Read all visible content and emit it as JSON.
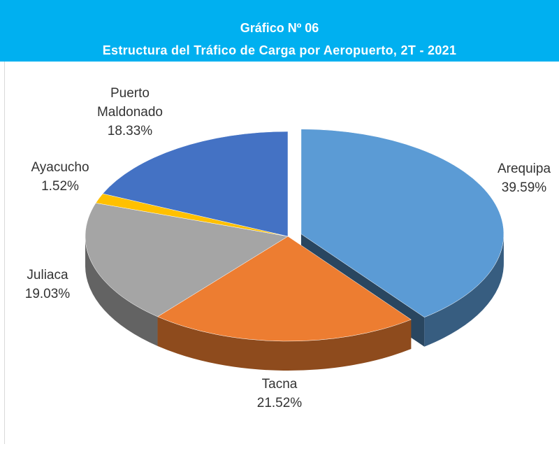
{
  "chart_data": {
    "type": "pie3d",
    "title": "Gráfico Nº 06",
    "subtitle": "Estructura del Tráfico de Carga por Aeropuerto, 2T - 2021",
    "categories": [
      "Arequipa",
      "Tacna",
      "Juliaca",
      "Ayacucho",
      "Puerto Maldonado"
    ],
    "values": [
      39.59,
      21.52,
      19.03,
      1.52,
      18.33
    ],
    "value_labels": [
      "39.59%",
      "21.52%",
      "19.03%",
      "1.52%",
      "18.33%"
    ],
    "colors": [
      "#5b9bd5",
      "#ed7d31",
      "#a5a5a5",
      "#ffc000",
      "#4472c4"
    ],
    "exploded": [
      true,
      false,
      false,
      false,
      false
    ]
  }
}
